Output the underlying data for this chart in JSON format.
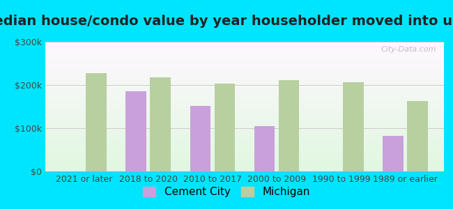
{
  "title": "Median house/condo value by year householder moved into unit",
  "categories": [
    "2021 or later",
    "2018 to 2020",
    "2010 to 2017",
    "2000 to 2009",
    "1990 to 1999",
    "1989 or earlier"
  ],
  "cement_city": [
    null,
    185000,
    152000,
    105000,
    null,
    82000
  ],
  "michigan": [
    228000,
    218000,
    204000,
    212000,
    207000,
    163000
  ],
  "cement_city_color": "#c9a0dc",
  "michigan_color": "#b8cfa0",
  "background_outer": "#00e5ff",
  "ylim": [
    0,
    300000
  ],
  "yticks": [
    0,
    100000,
    200000,
    300000
  ],
  "ytick_labels": [
    "$0",
    "$100k",
    "$200k",
    "$300k"
  ],
  "watermark": "City-Data.com",
  "legend_cement_city": "Cement City",
  "legend_michigan": "Michigan",
  "title_fontsize": 14,
  "tick_fontsize": 9,
  "legend_fontsize": 11
}
